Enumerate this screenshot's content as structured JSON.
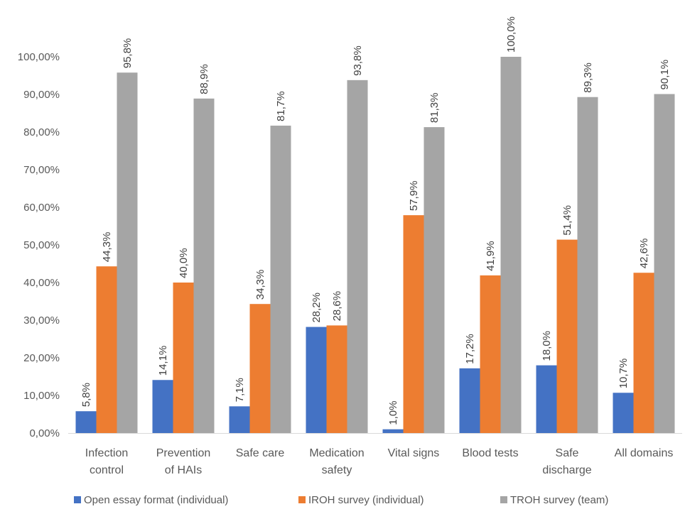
{
  "chart_data": {
    "type": "bar",
    "title": "",
    "xlabel": "",
    "ylabel": "",
    "ylim": [
      0,
      100
    ],
    "y_ticks": [
      0,
      10,
      20,
      30,
      40,
      50,
      60,
      70,
      80,
      90,
      100
    ],
    "y_tick_labels": [
      "0,00%",
      "10,00%",
      "20,00%",
      "30,00%",
      "40,00%",
      "50,00%",
      "60,00%",
      "70,00%",
      "80,00%",
      "90,00%",
      "100,00%"
    ],
    "grid": false,
    "legend_position": "bottom",
    "categories": [
      [
        "Infection",
        "control"
      ],
      [
        "Prevention",
        "of HAIs"
      ],
      [
        "Safe care"
      ],
      [
        "Medication",
        "safety"
      ],
      [
        "Vital signs"
      ],
      [
        "Blood tests"
      ],
      [
        "Safe",
        "discharge"
      ],
      [
        "All domains"
      ]
    ],
    "series": [
      {
        "name": "Open essay format (individual)",
        "color": "#4472c4",
        "values": [
          5.8,
          14.1,
          7.1,
          28.2,
          1.0,
          17.2,
          18.0,
          10.7
        ],
        "labels": [
          "5,8%",
          "14,1%",
          "7,1%",
          "28,2%",
          "1,0%",
          "17,2%",
          "18,0%",
          "10,7%"
        ]
      },
      {
        "name": "IROH survey (individual)",
        "color": "#ed7d31",
        "values": [
          44.3,
          40.0,
          34.3,
          28.6,
          57.9,
          41.9,
          51.4,
          42.6
        ],
        "labels": [
          "44,3%",
          "40,0%",
          "34,3%",
          "28,6%",
          "57,9%",
          "41,9%",
          "51,4%",
          "42,6%"
        ]
      },
      {
        "name": "TROH survey (team)",
        "color": "#a5a5a5",
        "values": [
          95.8,
          88.9,
          81.7,
          93.8,
          81.3,
          100.0,
          89.3,
          90.1
        ],
        "labels": [
          "95,8%",
          "88,9%",
          "81,7%",
          "93,8%",
          "81,3%",
          "100,0%",
          "89,3%",
          "90,1%"
        ]
      }
    ]
  }
}
